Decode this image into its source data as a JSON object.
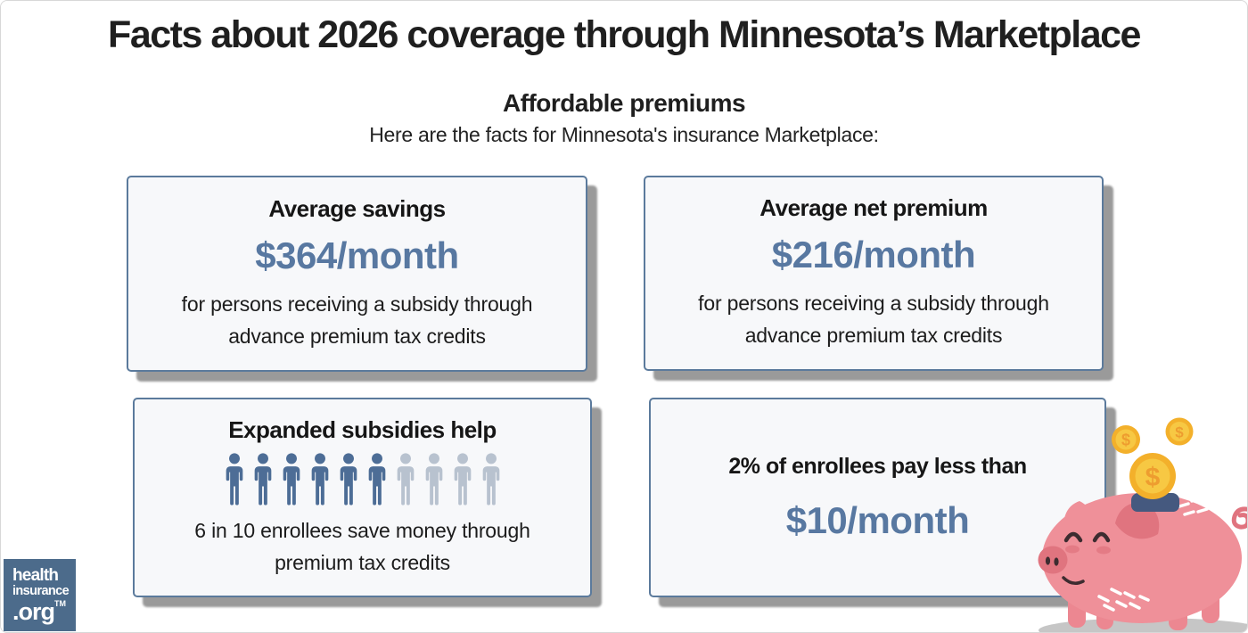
{
  "header": {
    "title": "Facts about 2026 coverage through Minnesota’s Marketplace",
    "subtitle": "Affordable premiums",
    "intro": "Here are the facts for Minnesota's insurance Marketplace:"
  },
  "cards": [
    {
      "heading": "Average savings",
      "value": "$364/month",
      "description": "for persons receiving a subsidy through advance premium tax credits"
    },
    {
      "heading": "Average net premium",
      "value": "$216/month",
      "description": "for persons receiving a subsidy through advance premium tax credits"
    },
    {
      "heading": "Expanded subsidies help",
      "description": "6 in 10 enrollees save money through premium tax credits",
      "pictogram": {
        "total": 10,
        "highlighted": 6
      }
    },
    {
      "heading": "2% of enrollees pay less than",
      "value": "$10/month"
    }
  ],
  "logo": {
    "line1": "health",
    "line2": "insurance",
    "line3": ".org",
    "trademark": "TM"
  },
  "illustration": {
    "name": "piggy-bank-with-falling-coins",
    "coin_symbol": "$"
  },
  "colors": {
    "title_text": "#1f1f1f",
    "value_accent": "#5878a1",
    "card_border": "#5b7a9c",
    "card_bg": "#f7f8fa",
    "card_shadow": "#9a9a9a",
    "person_dark": "#4d6d96",
    "person_light": "#b8c2cf",
    "logo_bg": "#4c6b8b",
    "pig_pink": "#ef9099",
    "pig_dark_pink": "#e0747f",
    "pig_leg": "#ec8791",
    "pig_detail": "#3d2c30",
    "coin_ring": "#f3b02b",
    "coin_face": "#f7c843",
    "coin_symbol": "#ee9d2f",
    "slot_navy": "#45597f",
    "ground_shadow": "#c6c6c6",
    "canvas_border": "#d8d8d8"
  }
}
